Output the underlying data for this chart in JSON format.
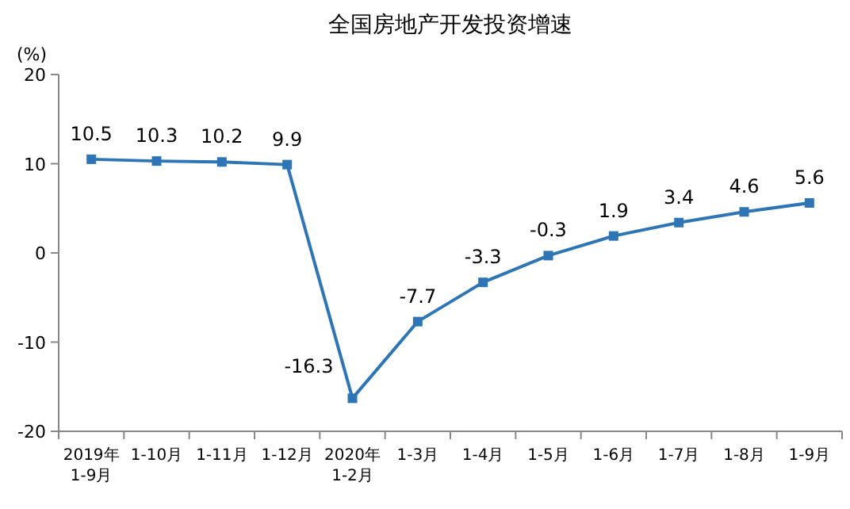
{
  "chart_data": {
    "type": "line",
    "title": "全国房地产开发投资增速",
    "ylabel": "(%)",
    "categories": [
      "2019年\n1-9月",
      "1-10月",
      "1-11月",
      "1-12月",
      "2020年\n1-2月",
      "1-3月",
      "1-4月",
      "1-5月",
      "1-6月",
      "1-7月",
      "1-8月",
      "1-9月"
    ],
    "series": [
      {
        "color": "#2e75b6",
        "values": [
          10.5,
          10.3,
          10.2,
          9.9,
          -16.3,
          -7.7,
          -3.3,
          -0.3,
          1.9,
          3.4,
          4.6,
          5.6
        ]
      }
    ],
    "ylim": [
      -20,
      20
    ],
    "yticks": [
      -20,
      -10,
      0,
      10,
      20
    ],
    "data_labels": true,
    "marker": "square",
    "line_style": "solid",
    "grid": false
  }
}
